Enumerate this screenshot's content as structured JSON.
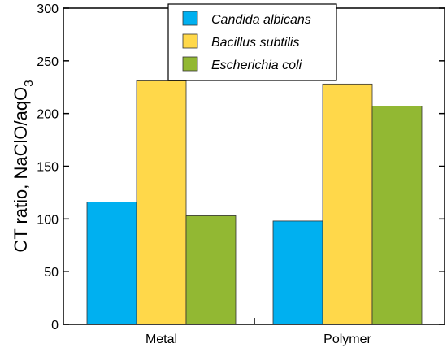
{
  "chart_data": {
    "type": "bar",
    "categories": [
      "Metal",
      "Polymer"
    ],
    "series": [
      {
        "name": "Candida albicans",
        "color": "#00b0f0",
        "values": [
          116,
          98
        ]
      },
      {
        "name": "Bacillus subtilis",
        "color": "#ffd84a",
        "values": [
          231,
          228
        ]
      },
      {
        "name": "Escherichia coli",
        "color": "#92b833",
        "values": [
          103,
          207
        ]
      }
    ],
    "ylabel": "CT ratio, NaClO/aqO",
    "ylabel_subscript": "3",
    "ylim": [
      0,
      300
    ],
    "yticks": [
      "0",
      "50",
      "100",
      "150",
      "200",
      "250",
      "300"
    ],
    "grid": false,
    "legend_position": "top-center"
  }
}
